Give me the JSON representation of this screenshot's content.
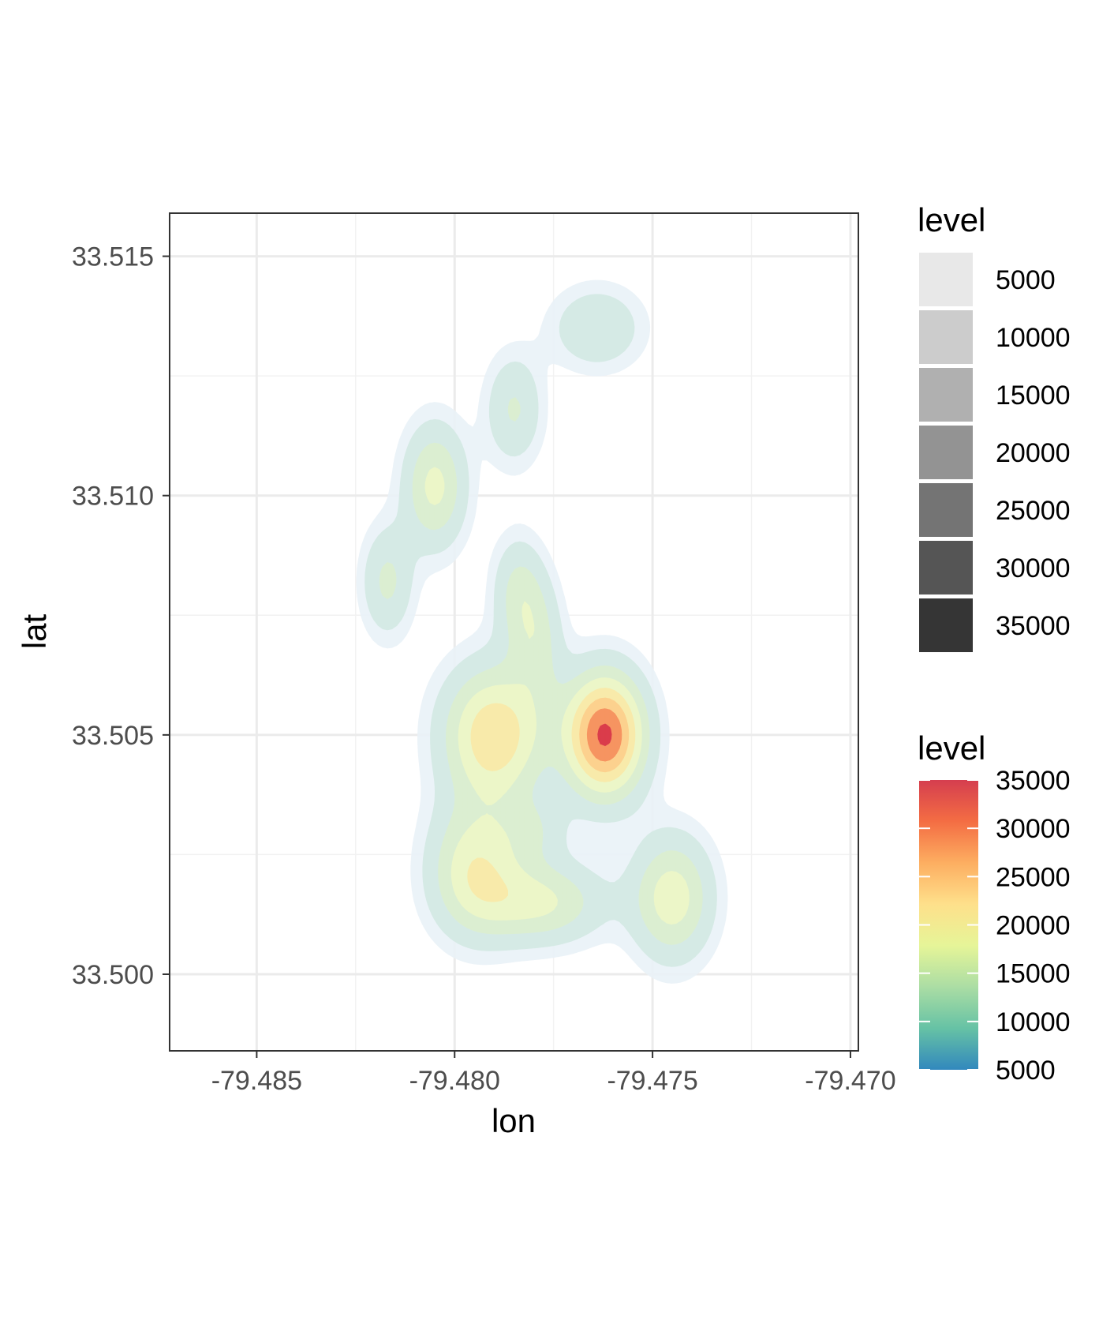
{
  "chart_data": {
    "type": "contour",
    "title": "",
    "xlabel": "lon",
    "ylabel": "lat",
    "xlim": [
      -79.4872,
      -79.4698
    ],
    "ylim": [
      33.4984,
      33.5159
    ],
    "x_ticks": [
      -79.485,
      -79.48,
      -79.475,
      -79.47
    ],
    "x_tick_labels": [
      "-79.485",
      "-79.480",
      "-79.475",
      "-79.470"
    ],
    "y_ticks": [
      33.5,
      33.505,
      33.51,
      33.515
    ],
    "y_tick_labels": [
      "33.500",
      "33.505",
      "33.510",
      "33.515"
    ],
    "grid": true,
    "density_levels": [
      5000,
      10000,
      15000,
      20000,
      25000,
      30000,
      35000
    ],
    "density_peaks": [
      {
        "lon": -79.4762,
        "lat": 33.505,
        "value": 36000
      },
      {
        "lon": -79.479,
        "lat": 33.505,
        "value": 24500
      },
      {
        "lon": -79.4795,
        "lat": 33.5022,
        "value": 18000
      },
      {
        "lon": -79.4745,
        "lat": 33.5016,
        "value": 18000
      },
      {
        "lon": -79.4778,
        "lat": 33.5015,
        "value": 15500
      },
      {
        "lon": -79.4805,
        "lat": 33.5102,
        "value": 16500
      },
      {
        "lon": -79.4817,
        "lat": 33.5082,
        "value": 11000
      },
      {
        "lon": -79.4784,
        "lat": 33.508,
        "value": 10500
      },
      {
        "lon": -79.4779,
        "lat": 33.507,
        "value": 10000
      },
      {
        "lon": -79.4785,
        "lat": 33.5118,
        "value": 10500
      },
      {
        "lon": -79.4764,
        "lat": 33.5135,
        "value": 10000
      },
      {
        "lon": -79.478,
        "lat": 33.503,
        "value": 7000
      }
    ],
    "legends": [
      {
        "title": "level",
        "type": "alpha",
        "entries": [
          "5000",
          "10000",
          "15000",
          "20000",
          "25000",
          "30000",
          "35000"
        ],
        "colors": [
          "#e8e8e8",
          "#cccccc",
          "#b0b0b0",
          "#939393",
          "#747474",
          "#555555",
          "#353535"
        ]
      },
      {
        "title": "level",
        "type": "colorbar",
        "palette": "Spectral",
        "range": [
          5000,
          35000
        ],
        "labels": [
          "35000",
          "30000",
          "25000",
          "20000",
          "15000",
          "10000",
          "5000"
        ],
        "colors": [
          "#3288bd",
          "#66c2a5",
          "#abdda4",
          "#e6f598",
          "#fee08b",
          "#fdae61",
          "#f46d43",
          "#d53e4f"
        ]
      }
    ]
  }
}
